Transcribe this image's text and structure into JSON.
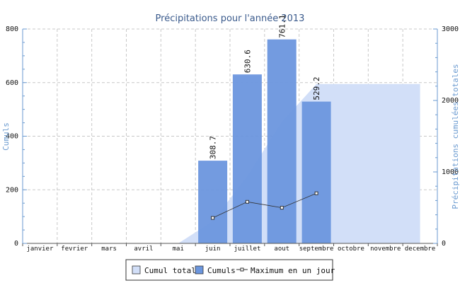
{
  "chart_data": {
    "type": "bar",
    "title": "Précipitations pour l'année 2013",
    "ylabel_left": "Cumuls",
    "ylabel_right": "Précipitations cumulées totales",
    "categories": [
      "janvier",
      "fevrier",
      "mars",
      "avril",
      "mai",
      "juin",
      "juillet",
      "aout",
      "septembre",
      "octobre",
      "novembre",
      "decembre"
    ],
    "ylim_left": [
      0,
      800
    ],
    "yticks_left": [
      "0",
      "200",
      "400",
      "600",
      "800"
    ],
    "ylim_right": [
      0,
      3000
    ],
    "yticks_right": [
      "0",
      "1000",
      "2000",
      "3000"
    ],
    "grid": true,
    "legend_position": "bottom",
    "series": [
      {
        "name": "Cumul total",
        "kind": "area",
        "axis": "right",
        "color": "#d2dff8",
        "values": [
          0,
          0,
          0,
          0,
          0,
          308.7,
          939.3,
          1700.4,
          2229.6,
          2229.6,
          2229.6,
          2229.6
        ]
      },
      {
        "name": "Cumuls",
        "kind": "bar",
        "axis": "left",
        "color": "#6b96de",
        "values": [
          0,
          0,
          0,
          0,
          0,
          308.7,
          630.6,
          761.1,
          529.2,
          0,
          0,
          0
        ],
        "data_labels": [
          "",
          "",
          "",
          "",
          "",
          "308.7",
          "630.6",
          "761.1",
          "529.2",
          "",
          "",
          ""
        ]
      },
      {
        "name": "Maximum en un jour",
        "kind": "line",
        "axis": "left",
        "color": "#333333",
        "values": [
          null,
          null,
          null,
          null,
          null,
          95,
          155,
          133,
          187,
          null,
          null,
          null
        ]
      }
    ],
    "colors": {
      "title": "#3a5a8c",
      "axis_label": "#6a9ad0",
      "grid": "#c8c8c8",
      "axis": "#555555"
    }
  }
}
